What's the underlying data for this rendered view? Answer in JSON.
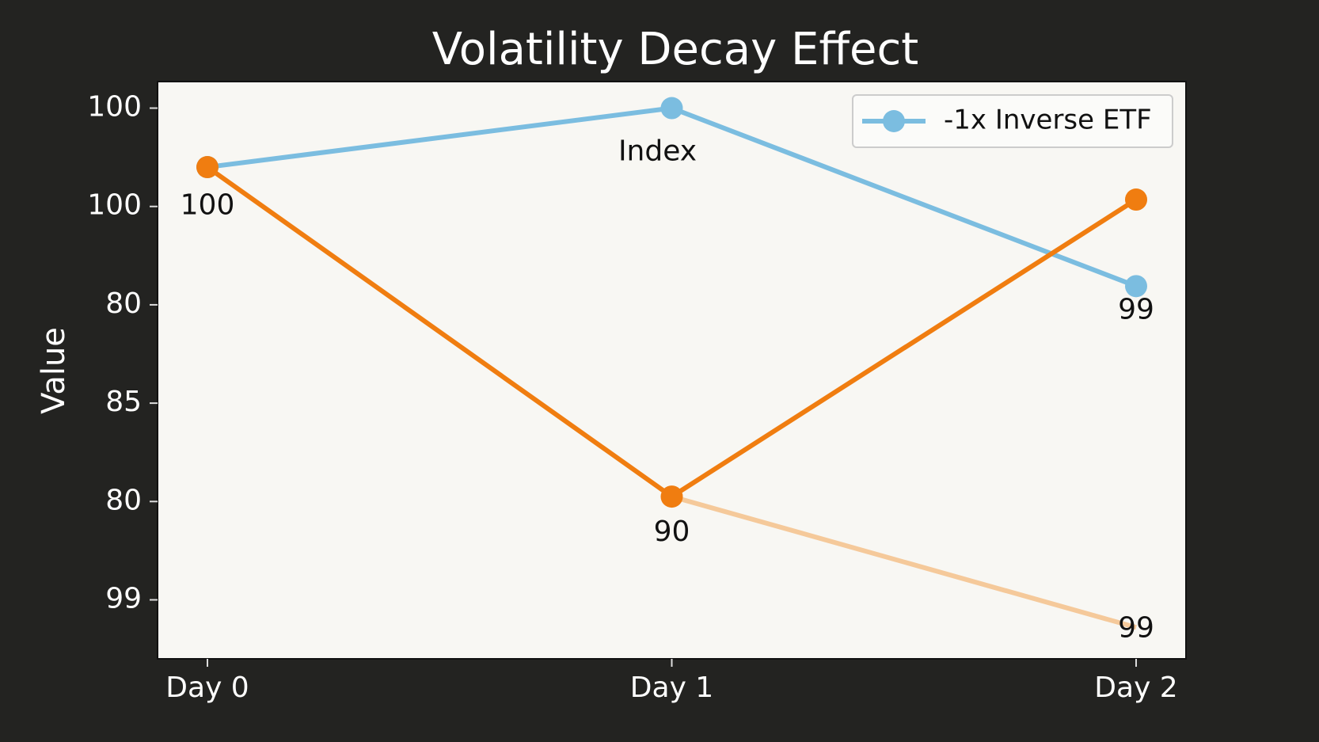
{
  "chart_data": {
    "type": "line",
    "title": "Volatility Decay Effect",
    "y_label": "Value",
    "categories": [
      "Day 0",
      "Day 1",
      "Day 2"
    ],
    "series": [
      {
        "name": "-1x Inverse ETF",
        "color": "#7bbde0",
        "values": [
          4.4,
          5.0,
          3.19
        ],
        "markers": true
      },
      {
        "color": "#f07d10",
        "values": [
          4.4,
          1.05,
          4.07
        ],
        "markers": true
      },
      {
        "color": "#f5c99a",
        "values": [
          null,
          1.05,
          -0.28
        ],
        "markers": false
      }
    ],
    "annotations": [
      {
        "text": "100",
        "x": "Day 0",
        "y": 4.0
      },
      {
        "text": "Index",
        "x": "Day 1",
        "y": 4.55
      },
      {
        "text": "90",
        "x": "Day 1",
        "y": 0.68
      },
      {
        "text": "99",
        "x": "Day 2",
        "y": 2.94
      },
      {
        "text": "99",
        "x": "Day 2",
        "y": -0.3
      }
    ],
    "ylim": [
      -0.6,
      5.27
    ],
    "yticks": [
      {
        "value": 5,
        "label": "100"
      },
      {
        "value": 4,
        "label": "100"
      },
      {
        "value": 3,
        "label": "80"
      },
      {
        "value": 2,
        "label": "85"
      },
      {
        "value": 1,
        "label": "80"
      },
      {
        "value": 0,
        "label": "99"
      }
    ],
    "legend": "upper right",
    "grid": false
  }
}
